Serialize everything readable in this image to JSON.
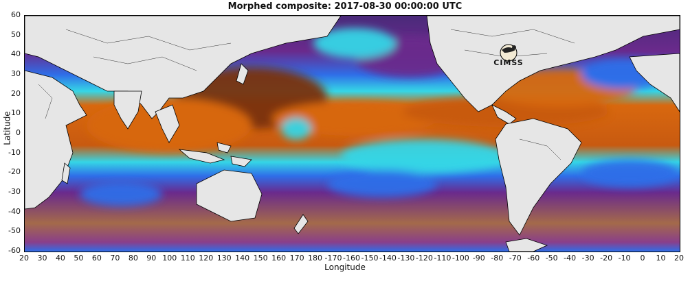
{
  "title": "Morphed composite: 2017-08-30 00:00:00 UTC",
  "xlabel": "Longitude",
  "ylabel": "Latitude",
  "x_ticks": [
    "20",
    "30",
    "40",
    "50",
    "60",
    "70",
    "80",
    "90",
    "100",
    "110",
    "120",
    "130",
    "140",
    "150",
    "160",
    "170",
    "180",
    "-170",
    "-160",
    "-150",
    "-140",
    "-130",
    "-120",
    "-110",
    "-100",
    "-90",
    "-80",
    "-70",
    "-60",
    "-50",
    "-40",
    "-30",
    "-20",
    "-10",
    "0",
    "10",
    "20"
  ],
  "y_ticks": [
    "60",
    "50",
    "40",
    "30",
    "20",
    "10",
    "0",
    "-10",
    "-20",
    "-30",
    "-40",
    "-50",
    "-60"
  ],
  "logo": {
    "text": "CIMSS",
    "icon": "cimss-logo-icon"
  },
  "colors": {
    "land": "#e6e6e6",
    "dry_purple": "#6a2a8c",
    "mid_blue": "#2f6ee8",
    "cyan": "#35d6e6",
    "green": "#6ee07a",
    "moist_orange": "#d8680f",
    "dark_brown": "#7a3208",
    "south_brown": "#a46a4a"
  }
}
